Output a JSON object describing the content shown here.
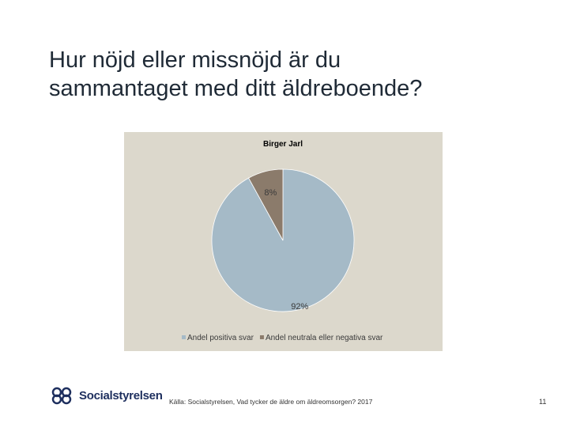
{
  "slide": {
    "title": "Hur nöjd eller missnöjd är du\nsammantaget med ditt äldreboende?",
    "source": "Källa: Socialstyrelsen, Vad tycker de äldre om äldreomsorgen? 2017",
    "page_number": "11",
    "logo_text": "Socialstyrelsen"
  },
  "chart_data": {
    "type": "pie",
    "title": "Birger Jarl",
    "categories": [
      "Andel positiva svar",
      "Andel neutrala eller negativa svar"
    ],
    "values": [
      92,
      8
    ],
    "data_labels": [
      "92%",
      "8%"
    ],
    "colors": [
      "#a5bac7",
      "#8b7b6b"
    ],
    "legend_position": "bottom",
    "background": "#dcd8cc"
  }
}
